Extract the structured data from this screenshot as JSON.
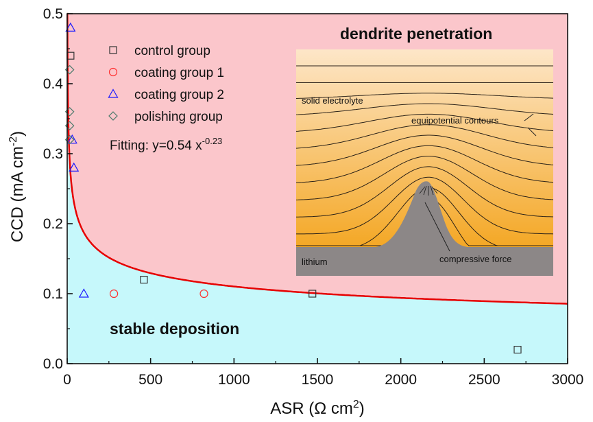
{
  "chart_data": {
    "type": "scatter",
    "xlabel": "ASR (Ω cm",
    "xlabel_sup": "2",
    "xlabel_end": ")",
    "ylabel": "CCD (mA cm",
    "ylabel_sup": "-2",
    "ylabel_end": ")",
    "xlim": [
      0,
      3000
    ],
    "ylim": [
      0,
      0.5
    ],
    "xticks": [
      0,
      500,
      1000,
      1500,
      2000,
      2500,
      3000
    ],
    "yticks": [
      0.0,
      0.1,
      0.2,
      0.3,
      0.4,
      0.5
    ],
    "ytick_labels": [
      "0.0",
      "0.1",
      "0.2",
      "0.3",
      "0.4",
      "0.5"
    ],
    "fit": {
      "a": 0.54,
      "b": -0.23,
      "color": "#e60000",
      "label_prefix": "Fitting: y=0.54 x",
      "label_sup": "-0.23"
    },
    "region_above_label": "dendrite penetration",
    "region_below_label": "stable deposition",
    "region_above_color": "#fbc6cb",
    "region_below_color": "#c6f8fb",
    "series": [
      {
        "name": "control group",
        "marker": "square",
        "color": "#333333",
        "points": [
          [
            460,
            0.12
          ],
          [
            1470,
            0.1
          ],
          [
            2700,
            0.02
          ],
          [
            20,
            0.44
          ]
        ]
      },
      {
        "name": "coating group 1",
        "marker": "circle",
        "color": "#ff3030",
        "points": [
          [
            280,
            0.1
          ],
          [
            820,
            0.1
          ]
        ]
      },
      {
        "name": "coating group 2",
        "marker": "triangle",
        "color": "#1a1aff",
        "points": [
          [
            20,
            0.48
          ],
          [
            100,
            0.1
          ],
          [
            30,
            0.32
          ],
          [
            40,
            0.28
          ]
        ]
      },
      {
        "name": "polishing group",
        "marker": "diamond",
        "color": "#4c7a6c",
        "points": [
          [
            15,
            0.42
          ],
          [
            15,
            0.36
          ],
          [
            15,
            0.34
          ],
          [
            15,
            0.32
          ]
        ]
      }
    ],
    "inset": {
      "electrolyte_label": "solid electrolyte",
      "contours_label": "equipotential contours",
      "lithium_label": "lithium",
      "force_label": "compressive force",
      "top_color": "#fde6c8",
      "bottom_color": "#f4a724",
      "lithium_color": "#8c8787"
    }
  }
}
